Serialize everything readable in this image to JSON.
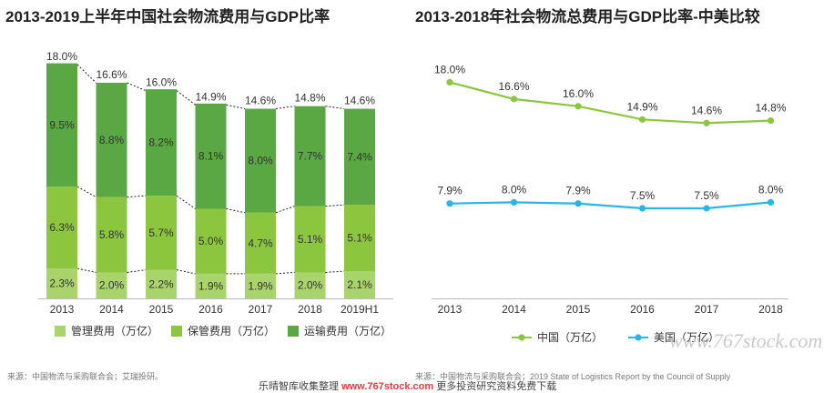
{
  "chart_data": [
    {
      "type": "bar",
      "stacked": true,
      "title": "2013-2019上半年中国社会物流费用与GDP比率",
      "categories": [
        "2013",
        "2014",
        "2015",
        "2016",
        "2017",
        "2018",
        "2019H1"
      ],
      "series": [
        {
          "name": "管理费用（万亿）",
          "color": "#a9d36b",
          "values": [
            2.3,
            2.0,
            2.2,
            1.9,
            1.9,
            2.0,
            2.1
          ],
          "labels": [
            "2.3%",
            "2.0%",
            "2.2%",
            "1.9%",
            "1.9%",
            "2.0%",
            "2.1%"
          ]
        },
        {
          "name": "保管费用（万亿）",
          "color": "#8cc63f",
          "values": [
            6.3,
            5.8,
            5.7,
            5.0,
            4.7,
            5.1,
            5.1
          ],
          "labels": [
            "6.3%",
            "5.8%",
            "5.7%",
            "5.0%",
            "4.7%",
            "5.1%",
            "5.1%"
          ]
        },
        {
          "name": "运输费用（万亿）",
          "color": "#5aa843",
          "values": [
            9.5,
            8.8,
            8.2,
            8.1,
            8.0,
            7.7,
            7.4
          ],
          "labels": [
            "9.5%",
            "8.8%",
            "8.2%",
            "8.1%",
            "8.0%",
            "7.7%",
            "7.4%"
          ]
        }
      ],
      "totals": [
        18.0,
        16.6,
        16.0,
        14.9,
        14.6,
        14.8,
        14.6
      ],
      "total_labels": [
        "18.0%",
        "16.6%",
        "16.0%",
        "14.9%",
        "14.6%",
        "14.8%",
        "14.6%"
      ],
      "ylim": [
        0,
        18
      ],
      "legend": "bottom",
      "source": "来源：中国物流与采购联合会；艾瑞投研。"
    },
    {
      "type": "line",
      "title": "2013-2018年社会物流总费用与GDP比率-中美比较",
      "x": [
        "2013",
        "2014",
        "2015",
        "2016",
        "2017",
        "2018"
      ],
      "series": [
        {
          "name": "中国（万亿）",
          "color": "#8cc63f",
          "values": [
            18.0,
            16.6,
            16.0,
            14.9,
            14.6,
            14.8
          ],
          "labels": [
            "18.0%",
            "16.6%",
            "16.0%",
            "14.9%",
            "14.6%",
            "14.8%"
          ]
        },
        {
          "name": "美国（万亿）",
          "color": "#29b6e6",
          "values": [
            7.9,
            8.0,
            7.9,
            7.5,
            7.5,
            8.0
          ],
          "labels": [
            "7.9%",
            "8.0%",
            "7.9%",
            "7.5%",
            "7.5%",
            "8.0%"
          ]
        }
      ],
      "ylim": [
        0,
        20
      ],
      "legend": "bottom",
      "source": "来源：中国物流与采购联合会；2019 State of Logistics Report by the Council of Supply"
    }
  ],
  "watermark": "www.767stock.com",
  "footer": {
    "prefix": "乐晴智库收集整理 ",
    "link": "www.767stock.com",
    "suffix": " 更多投资研究资料免费下载"
  }
}
